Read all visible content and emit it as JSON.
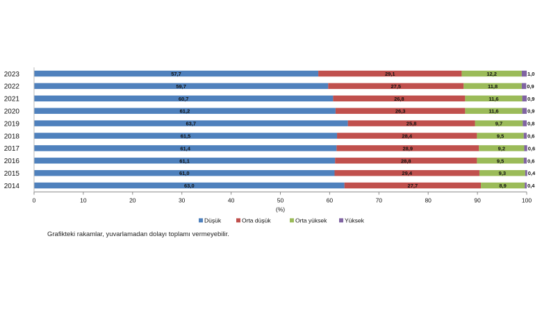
{
  "chart_data": {
    "type": "bar",
    "orientation": "horizontal",
    "stacked": true,
    "categories": [
      "2023",
      "2022",
      "2021",
      "2020",
      "2019",
      "2018",
      "2017",
      "2016",
      "2015",
      "2014"
    ],
    "series": [
      {
        "name": "Düşük",
        "color": "#4f81bd",
        "values": [
          57.7,
          59.7,
          60.7,
          61.2,
          63.7,
          61.5,
          61.4,
          61.1,
          61.0,
          63.0
        ],
        "labels": [
          "57,7",
          "59,7",
          "60,7",
          "61,2",
          "63,7",
          "61,5",
          "61,4",
          "61,1",
          "61,0",
          "63,0"
        ]
      },
      {
        "name": "Orta düşük",
        "color": "#c0504d",
        "values": [
          29.1,
          27.5,
          26.8,
          26.3,
          25.8,
          28.4,
          28.9,
          28.8,
          29.4,
          27.7
        ],
        "labels": [
          "29,1",
          "27,5",
          "26,8",
          "26,3",
          "25,8",
          "28,4",
          "28,9",
          "28,8",
          "29,4",
          "27,7"
        ]
      },
      {
        "name": "Orta yüksek",
        "color": "#9bbb59",
        "values": [
          12.2,
          11.8,
          11.6,
          11.6,
          9.7,
          9.5,
          9.2,
          9.5,
          9.3,
          8.9
        ],
        "labels": [
          "12,2",
          "11,8",
          "11,6",
          "11,6",
          "9,7",
          "9,5",
          "9,2",
          "9,5",
          "9,3",
          "8,9"
        ]
      },
      {
        "name": "Yüksek",
        "color": "#8064a2",
        "values": [
          1.0,
          0.9,
          0.9,
          0.9,
          0.8,
          0.6,
          0.6,
          0.6,
          0.4,
          0.4
        ],
        "labels": [
          "1,0",
          "0,9",
          "0,9",
          "0,9",
          "0,8",
          "0,6",
          "0,6",
          "0,6",
          "0,4",
          "0,4"
        ]
      }
    ],
    "xlim": [
      0,
      100
    ],
    "xticks": [
      0,
      10,
      20,
      30,
      40,
      50,
      60,
      70,
      80,
      90,
      100
    ],
    "xlabel": "(%)",
    "legend_position": "bottom",
    "grid": false
  },
  "footnote": "Grafikteki rakamlar, yuvarlamadan dolayı toplamı vermeyebilir."
}
